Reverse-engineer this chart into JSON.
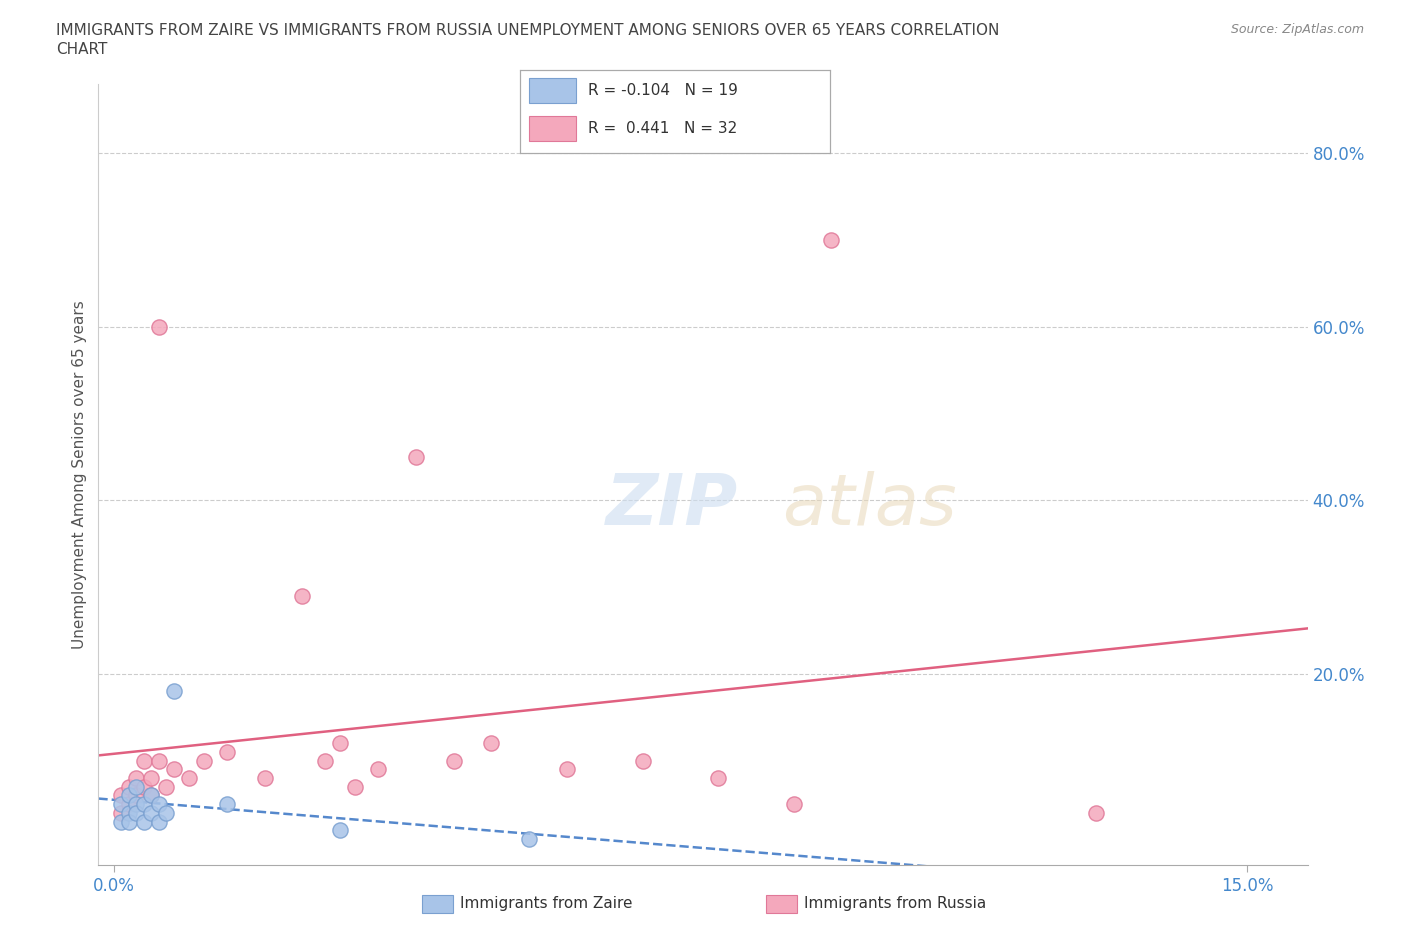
{
  "title_line1": "IMMIGRANTS FROM ZAIRE VS IMMIGRANTS FROM RUSSIA UNEMPLOYMENT AMONG SENIORS OVER 65 YEARS CORRELATION",
  "title_line2": "CHART",
  "source": "Source: ZipAtlas.com",
  "ylabel": "Unemployment Among Seniors over 65 years",
  "zaire_R": -0.104,
  "zaire_N": 19,
  "russia_R": 0.441,
  "russia_N": 32,
  "zaire_color": "#a8c4e8",
  "russia_color": "#f4a8bc",
  "zaire_edge_color": "#7aa0d0",
  "russia_edge_color": "#e07898",
  "zaire_line_color": "#5588cc",
  "russia_line_color": "#e06080",
  "background_color": "#ffffff",
  "grid_color": "#cccccc",
  "title_color": "#444444",
  "axis_label_color": "#555555",
  "tick_label_color": "#4488cc",
  "legend_border_color": "#aaaaaa",
  "zaire_x": [
    0.001,
    0.001,
    0.002,
    0.002,
    0.002,
    0.003,
    0.003,
    0.003,
    0.004,
    0.004,
    0.005,
    0.005,
    0.006,
    0.006,
    0.007,
    0.008,
    0.015,
    0.03,
    0.055
  ],
  "zaire_y": [
    0.03,
    0.05,
    0.04,
    0.06,
    0.03,
    0.05,
    0.04,
    0.07,
    0.05,
    0.03,
    0.04,
    0.06,
    0.05,
    0.03,
    0.04,
    0.18,
    0.05,
    0.02,
    0.01
  ],
  "russia_x": [
    0.001,
    0.001,
    0.002,
    0.002,
    0.003,
    0.003,
    0.004,
    0.004,
    0.005,
    0.005,
    0.006,
    0.006,
    0.007,
    0.008,
    0.01,
    0.012,
    0.015,
    0.02,
    0.025,
    0.028,
    0.03,
    0.032,
    0.035,
    0.04,
    0.045,
    0.05,
    0.06,
    0.07,
    0.08,
    0.09,
    0.095,
    0.13
  ],
  "russia_y": [
    0.04,
    0.06,
    0.05,
    0.07,
    0.06,
    0.08,
    0.07,
    0.1,
    0.06,
    0.08,
    0.1,
    0.6,
    0.07,
    0.09,
    0.08,
    0.1,
    0.11,
    0.08,
    0.29,
    0.1,
    0.12,
    0.07,
    0.09,
    0.45,
    0.1,
    0.12,
    0.09,
    0.1,
    0.08,
    0.05,
    0.7,
    0.04
  ],
  "xlim": [
    -0.002,
    0.158
  ],
  "ylim": [
    -0.02,
    0.88
  ],
  "x_ticks": [
    0.0,
    0.15
  ],
  "x_tick_labels": [
    "0.0%",
    "15.0%"
  ],
  "y_ticks_right": [
    0.2,
    0.4,
    0.6,
    0.8
  ],
  "y_tick_labels_right": [
    "20.0%",
    "40.0%",
    "60.0%",
    "80.0%"
  ]
}
